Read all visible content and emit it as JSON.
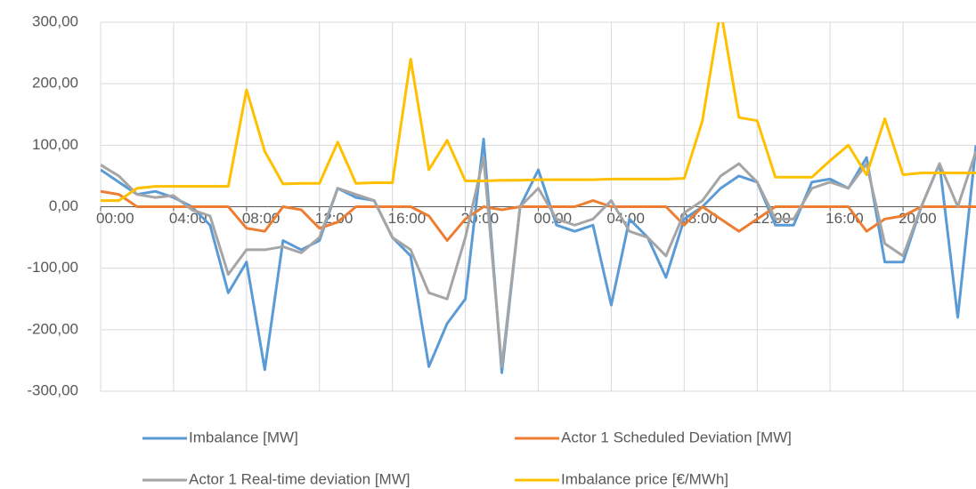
{
  "chart_data": {
    "type": "line",
    "x": [
      0,
      1,
      2,
      3,
      4,
      5,
      6,
      7,
      8,
      9,
      10,
      11,
      12,
      13,
      14,
      15,
      16,
      17,
      18,
      19,
      20,
      21,
      22,
      23,
      24,
      25,
      26,
      27,
      28,
      29,
      30,
      31,
      32,
      33,
      34,
      35,
      36,
      37,
      38,
      39,
      40,
      41,
      42,
      43,
      44,
      45,
      46,
      47,
      48
    ],
    "series": [
      {
        "name": "Imbalance [MW]",
        "color": "#5b9bd5",
        "values": [
          60,
          40,
          20,
          25,
          15,
          0,
          -30,
          -140,
          -90,
          -265,
          -55,
          -70,
          -55,
          30,
          15,
          10,
          -50,
          -80,
          -260,
          -190,
          -150,
          110,
          -270,
          0,
          60,
          -30,
          -40,
          -30,
          -160,
          -20,
          -50,
          -115,
          -20,
          0,
          30,
          50,
          40,
          -30,
          -30,
          40,
          45,
          30,
          80,
          -90,
          -90,
          0,
          70,
          -180,
          100
        ]
      },
      {
        "name": "Actor 1 Scheduled Deviation [MW]",
        "color": "#ed7d31",
        "values": [
          25,
          20,
          0,
          0,
          0,
          0,
          0,
          0,
          -35,
          -40,
          0,
          -5,
          -35,
          -25,
          0,
          0,
          0,
          0,
          -15,
          -55,
          -20,
          0,
          -5,
          0,
          0,
          0,
          0,
          10,
          0,
          0,
          0,
          0,
          -30,
          0,
          -20,
          -40,
          -20,
          0,
          0,
          0,
          0,
          0,
          -40,
          -20,
          -15,
          0,
          0,
          0,
          0
        ]
      },
      {
        "name": "Actor 1 Real-time deviation [MW]",
        "color": "#a5a5a5",
        "values": [
          68,
          50,
          20,
          15,
          18,
          -5,
          -15,
          -110,
          -70,
          -70,
          -65,
          -75,
          -50,
          30,
          20,
          10,
          -50,
          -70,
          -140,
          -150,
          -50,
          80,
          -260,
          0,
          30,
          -20,
          -30,
          -20,
          10,
          -40,
          -50,
          -80,
          -10,
          10,
          50,
          70,
          40,
          -20,
          -20,
          30,
          40,
          30,
          70,
          -60,
          -80,
          0,
          70,
          0,
          90
        ]
      },
      {
        "name": "Imbalance price [€/MWh]",
        "color": "#ffc000",
        "values": [
          10,
          10,
          30,
          33,
          33,
          33,
          33,
          33,
          190,
          90,
          37,
          38,
          38,
          105,
          38,
          39,
          39,
          240,
          60,
          108,
          42,
          42,
          43,
          43,
          44,
          44,
          44,
          44,
          45,
          45,
          45,
          45,
          46,
          140,
          320,
          145,
          140,
          48,
          48,
          48,
          75,
          100,
          52,
          143,
          52,
          55,
          55,
          55,
          55
        ]
      }
    ],
    "xlim": [
      0,
      48
    ],
    "xticks": [
      {
        "value": 0,
        "label": "00:00"
      },
      {
        "value": 4,
        "label": "04:00"
      },
      {
        "value": 8,
        "label": "08:00"
      },
      {
        "value": 12,
        "label": "12:00"
      },
      {
        "value": 16,
        "label": "16:00"
      },
      {
        "value": 20,
        "label": "20:00"
      },
      {
        "value": 24,
        "label": "00:00"
      },
      {
        "value": 28,
        "label": "04:00"
      },
      {
        "value": 32,
        "label": "08:00"
      },
      {
        "value": 36,
        "label": "12:00"
      },
      {
        "value": 40,
        "label": "16:00"
      },
      {
        "value": 44,
        "label": "20:00"
      }
    ],
    "ylim": [
      -300,
      300
    ],
    "yticks": [
      {
        "value": -300,
        "label": "-300,00"
      },
      {
        "value": -200,
        "label": "-200,00"
      },
      {
        "value": -100,
        "label": "-100,00"
      },
      {
        "value": 0,
        "label": "0,00"
      },
      {
        "value": 100,
        "label": "100,00"
      },
      {
        "value": 200,
        "label": "200,00"
      },
      {
        "value": 300,
        "label": "300,00"
      }
    ],
    "grid": true,
    "legend": "bottom"
  }
}
